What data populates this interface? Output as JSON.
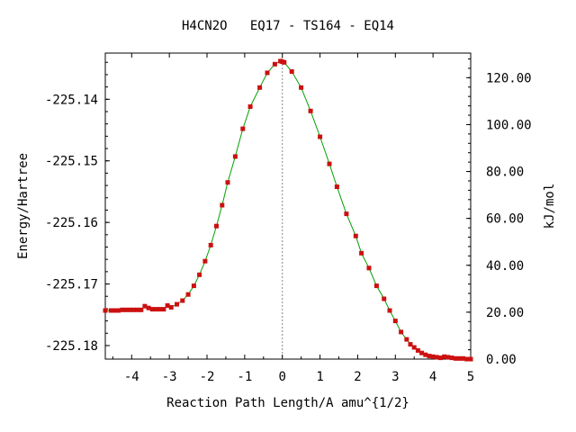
{
  "chart_data": {
    "type": "line",
    "title": "H4CN2O   EQ17 - TS164 - EQ14",
    "xlabel": "Reaction Path Length/A amu^{1/2}",
    "ylabel": "Energy/Hartree",
    "y2label": "kJ/mol",
    "xlim": [
      -4.7,
      5.0
    ],
    "ylim": [
      -225.1822,
      -225.1325
    ],
    "x_ticks": [
      "-4",
      "-3",
      "-2",
      "-1",
      "0",
      "1",
      "2",
      "3",
      "4",
      "5"
    ],
    "x_tick_values": [
      -4,
      -3,
      -2,
      -1,
      0,
      1,
      2,
      3,
      4,
      5
    ],
    "y_ticks": [
      "-225.14",
      "-225.15",
      "-225.16",
      "-225.17",
      "-225.18"
    ],
    "y_tick_values": [
      -225.14,
      -225.15,
      -225.16,
      -225.17,
      -225.18
    ],
    "y2_ticks": [
      "0.00",
      "20.00",
      "40.00",
      "60.00",
      "80.00",
      "100.00",
      "120.00"
    ],
    "y2_tick_values": [
      0,
      20,
      40,
      60,
      80,
      100,
      120
    ],
    "y2_zero_hartree": -225.1822,
    "hartree_to_kjmol": 2625.5,
    "ts_marker_x": 0,
    "grid": false,
    "colors": {
      "line": "#00a000",
      "points": "#cc1010",
      "marker_line": "#888888",
      "axes": "#000000"
    },
    "series": [
      {
        "x": [
          -4.7,
          -4.55,
          -4.45,
          -4.35,
          -4.25,
          -4.15,
          -4.05,
          -3.95,
          -3.85,
          -3.75,
          -3.65,
          -3.55,
          -3.45,
          -3.35,
          -3.25,
          -3.15,
          -3.05,
          -2.95,
          -2.8,
          -2.65,
          -2.5,
          -2.35,
          -2.2,
          -2.05,
          -1.9,
          -1.75,
          -1.6,
          -1.45,
          -1.25,
          -1.05,
          -0.85,
          -0.6,
          -0.4,
          -0.2,
          -0.05,
          0.0,
          0.05,
          0.25,
          0.5,
          0.75,
          1.0,
          1.25,
          1.45,
          1.7,
          1.95,
          2.1,
          2.3,
          2.5,
          2.7,
          2.85,
          3.0,
          3.15,
          3.3,
          3.4,
          3.5,
          3.6,
          3.7,
          3.8,
          3.9,
          4.0,
          4.1,
          4.2,
          4.3,
          4.4,
          4.5,
          4.6,
          4.7,
          4.8,
          4.9,
          5.0
        ],
        "y": [
          -225.1743,
          -225.1743,
          -225.1743,
          -225.1743,
          -225.1742,
          -225.1742,
          -225.1742,
          -225.1742,
          -225.1742,
          -225.1742,
          -225.1736,
          -225.1739,
          -225.1741,
          -225.1741,
          -225.1741,
          -225.1741,
          -225.1735,
          -225.1738,
          -225.1733,
          -225.1727,
          -225.1717,
          -225.1703,
          -225.1685,
          -225.1663,
          -225.1637,
          -225.1606,
          -225.1572,
          -225.1535,
          -225.1493,
          -225.1448,
          -225.1412,
          -225.1381,
          -225.1357,
          -225.1343,
          -225.1338,
          -225.1339,
          -225.134,
          -225.1355,
          -225.1381,
          -225.1419,
          -225.1461,
          -225.1505,
          -225.1542,
          -225.1586,
          -225.1622,
          -225.165,
          -225.1674,
          -225.1703,
          -225.1724,
          -225.1743,
          -225.176,
          -225.1778,
          -225.179,
          -225.1798,
          -225.1803,
          -225.1808,
          -225.1812,
          -225.1815,
          -225.1817,
          -225.1818,
          -225.1819,
          -225.182,
          -225.1818,
          -225.1819,
          -225.182,
          -225.1821,
          -225.1821,
          -225.1821,
          -225.1822,
          -225.1822
        ]
      }
    ]
  }
}
